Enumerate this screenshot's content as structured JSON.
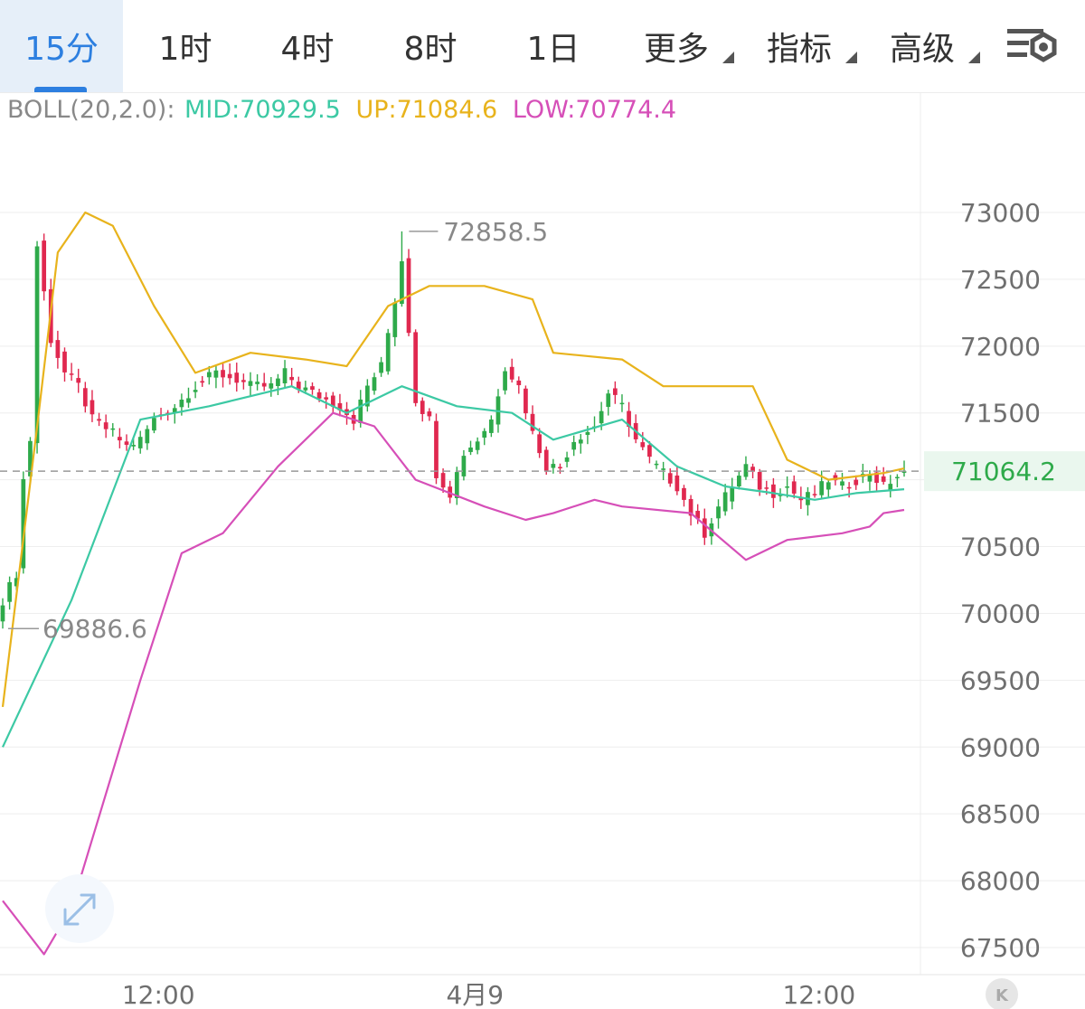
{
  "tabs": [
    {
      "label": "15分",
      "active": true,
      "dropdown": false
    },
    {
      "label": "1时",
      "active": false,
      "dropdown": false
    },
    {
      "label": "4时",
      "active": false,
      "dropdown": false
    },
    {
      "label": "8时",
      "active": false,
      "dropdown": false
    },
    {
      "label": "1日",
      "active": false,
      "dropdown": false
    },
    {
      "label": "更多",
      "active": false,
      "dropdown": true
    },
    {
      "label": "指标",
      "active": false,
      "dropdown": true
    },
    {
      "label": "高级",
      "active": false,
      "dropdown": true
    }
  ],
  "settings_icon": "chart-settings-icon",
  "expand_icon": "expand-icon",
  "nav_icon": "k-icon",
  "nav_label": "K",
  "indicator": {
    "name": "BOLL(20,2.0):",
    "mid": "MID:70929.5",
    "up": "UP:71084.6",
    "low": "LOW:70774.4"
  },
  "colors": {
    "up": "#e0284f",
    "down": "#2eaa4a",
    "mid": "#3cc9a4",
    "upper": "#e8b31c",
    "lower": "#d64fb8",
    "active": "#2d7fe0",
    "last_price": "#2eaa4a"
  },
  "chart_data": {
    "type": "candlestick",
    "y_ticks": [
      73000,
      72500,
      72000,
      71500,
      70500,
      70000,
      69500,
      69000,
      68500,
      68000,
      67500
    ],
    "ylim": [
      67400,
      73200
    ],
    "x_tick_labels": [
      {
        "label": "12:00",
        "index": 20
      },
      {
        "label": "4月9",
        "index": 66
      },
      {
        "label": "12:00",
        "index": 116
      }
    ],
    "last_price": 71064.2,
    "last_price_label": "71064.2",
    "high_annotation": {
      "label": "72858.5",
      "value": 72858.5,
      "index": 58
    },
    "low_annotation": {
      "label": "69886.6",
      "value": 69886.6,
      "index": 0
    },
    "bar_count": 132,
    "anchors": [
      [
        0,
        70100
      ],
      [
        2,
        70300
      ],
      [
        3,
        71000
      ],
      [
        4,
        71300
      ],
      [
        5,
        72750
      ],
      [
        7,
        72050
      ],
      [
        9,
        71800
      ],
      [
        11,
        71700
      ],
      [
        13,
        71450
      ],
      [
        16,
        71350
      ],
      [
        18,
        71250
      ],
      [
        20,
        71300
      ],
      [
        22,
        71450
      ],
      [
        25,
        71550
      ],
      [
        28,
        71700
      ],
      [
        31,
        71800
      ],
      [
        34,
        71750
      ],
      [
        36,
        71700
      ],
      [
        39,
        71700
      ],
      [
        41,
        71800
      ],
      [
        43,
        71700
      ],
      [
        45,
        71650
      ],
      [
        47,
        71600
      ],
      [
        49,
        71550
      ],
      [
        51,
        71450
      ],
      [
        53,
        71700
      ],
      [
        55,
        71850
      ],
      [
        57,
        72350
      ],
      [
        58,
        72650
      ],
      [
        60,
        71600
      ],
      [
        62,
        71450
      ],
      [
        63,
        71050
      ],
      [
        65,
        70900
      ],
      [
        67,
        71200
      ],
      [
        69,
        71300
      ],
      [
        71,
        71450
      ],
      [
        73,
        71850
      ],
      [
        75,
        71700
      ],
      [
        77,
        71350
      ],
      [
        79,
        71100
      ],
      [
        81,
        71100
      ],
      [
        83,
        71300
      ],
      [
        86,
        71400
      ],
      [
        88,
        71650
      ],
      [
        90,
        71550
      ],
      [
        92,
        71300
      ],
      [
        94,
        71150
      ],
      [
        96,
        71050
      ],
      [
        98,
        70950
      ],
      [
        100,
        70750
      ],
      [
        102,
        70600
      ],
      [
        104,
        70800
      ],
      [
        106,
        70950
      ],
      [
        108,
        71100
      ],
      [
        110,
        70950
      ],
      [
        112,
        70900
      ],
      [
        114,
        70950
      ],
      [
        116,
        70850
      ],
      [
        118,
        70900
      ],
      [
        120,
        71000
      ],
      [
        122,
        70950
      ],
      [
        124,
        71000
      ],
      [
        126,
        71050
      ],
      [
        128,
        70950
      ],
      [
        131,
        71064.2
      ]
    ],
    "boll_mid": [
      [
        0,
        69000
      ],
      [
        10,
        70100
      ],
      [
        20,
        71450
      ],
      [
        30,
        71550
      ],
      [
        42,
        71700
      ],
      [
        50,
        71500
      ],
      [
        58,
        71700
      ],
      [
        66,
        71550
      ],
      [
        74,
        71500
      ],
      [
        80,
        71300
      ],
      [
        90,
        71450
      ],
      [
        98,
        71100
      ],
      [
        105,
        70950
      ],
      [
        112,
        70900
      ],
      [
        118,
        70850
      ],
      [
        124,
        70900
      ],
      [
        131,
        70929.5
      ]
    ],
    "boll_upper": [
      [
        0,
        69300
      ],
      [
        5,
        71400
      ],
      [
        8,
        72700
      ],
      [
        12,
        73000
      ],
      [
        16,
        72900
      ],
      [
        22,
        72300
      ],
      [
        28,
        71800
      ],
      [
        36,
        71950
      ],
      [
        44,
        71900
      ],
      [
        50,
        71850
      ],
      [
        56,
        72300
      ],
      [
        58,
        72350
      ],
      [
        62,
        72450
      ],
      [
        70,
        72450
      ],
      [
        77,
        72350
      ],
      [
        80,
        71950
      ],
      [
        90,
        71900
      ],
      [
        96,
        71700
      ],
      [
        104,
        71700
      ],
      [
        109,
        71700
      ],
      [
        114,
        71150
      ],
      [
        120,
        71000
      ],
      [
        128,
        71050
      ],
      [
        131,
        71084.6
      ]
    ],
    "boll_lower": [
      [
        0,
        67850
      ],
      [
        6,
        67450
      ],
      [
        10,
        67800
      ],
      [
        20,
        69500
      ],
      [
        26,
        70450
      ],
      [
        32,
        70600
      ],
      [
        40,
        71100
      ],
      [
        48,
        71500
      ],
      [
        54,
        71400
      ],
      [
        60,
        71000
      ],
      [
        70,
        70800
      ],
      [
        76,
        70700
      ],
      [
        80,
        70750
      ],
      [
        86,
        70850
      ],
      [
        90,
        70800
      ],
      [
        100,
        70750
      ],
      [
        108,
        70400
      ],
      [
        114,
        70550
      ],
      [
        122,
        70600
      ],
      [
        126,
        70650
      ],
      [
        128,
        70750
      ],
      [
        131,
        70774.4
      ]
    ]
  }
}
